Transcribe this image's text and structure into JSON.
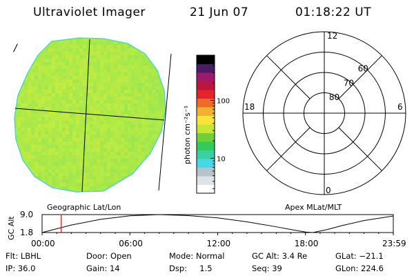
{
  "header": {
    "title": "Ultraviolet Imager",
    "date": "21 Jun 07",
    "time": "01:18:22 UT"
  },
  "globe": {
    "colors": [
      "#9ee84a",
      "#a8ea48",
      "#b4ec45",
      "#c2ee42",
      "#8fe352",
      "#c8e840",
      "#b0ea4a",
      "#9ce64e",
      "#d2ec3c"
    ],
    "edge_color": "#4fd8c0",
    "dark_side": "right-bottom"
  },
  "colorbar": {
    "ticks": [
      {
        "value": 100,
        "label": "100"
      },
      {
        "value": 10,
        "label": "10"
      }
    ],
    "range": [
      2.5,
      600
    ],
    "scale": "log",
    "unit_label": "photon cm⁻²s⁻¹",
    "colors": [
      "#ffffff",
      "#dfe3e8",
      "#b6c3cc",
      "#4bd6e6",
      "#3ad1a0",
      "#37c85a",
      "#6fd13a",
      "#c6e635",
      "#fae43c",
      "#f4b033",
      "#ef6b2a",
      "#e3252a",
      "#bd1340",
      "#9a1b6e",
      "#4a1c67",
      "#000000"
    ]
  },
  "polar": {
    "mlt_labels": [
      {
        "label": "12",
        "pos": "top"
      },
      {
        "label": "6",
        "pos": "right"
      },
      {
        "label": "0",
        "pos": "bottom"
      },
      {
        "label": "18",
        "pos": "left"
      }
    ],
    "lat_circles": [
      {
        "lat": 80,
        "label": "80"
      },
      {
        "lat": 70,
        "label": "70"
      },
      {
        "lat": 60,
        "label": "60"
      },
      {
        "lat": 50,
        "label": ""
      }
    ]
  },
  "labels": {
    "geo": "Geographic Lat/Lon",
    "apex": "Apex MLat/MLT",
    "pole_mark": "/"
  },
  "altitude_plot": {
    "ylabel": "GC Alt",
    "yticks": [
      {
        "value": 9.0,
        "label": "9.0"
      },
      {
        "value": 1.8,
        "label": "1.8"
      }
    ],
    "ylim": [
      1.8,
      9.0
    ],
    "xticks": [
      {
        "hour": 0,
        "label": "00:00"
      },
      {
        "hour": 6,
        "label": "06:00"
      },
      {
        "hour": 12,
        "label": "12:00"
      },
      {
        "hour": 18,
        "label": "18:00"
      },
      {
        "hour": 24,
        "label": "23:59"
      }
    ],
    "marker_hour": 1.3056,
    "marker_color": "#e8131b",
    "orbit": [
      {
        "hour": 0.0,
        "alt": 1.8
      },
      {
        "hour": 2.0,
        "alt": 4.8
      },
      {
        "hour": 4.0,
        "alt": 7.1
      },
      {
        "hour": 6.0,
        "alt": 8.5
      },
      {
        "hour": 8.0,
        "alt": 9.0
      },
      {
        "hour": 10.0,
        "alt": 8.6
      },
      {
        "hour": 12.0,
        "alt": 7.7
      },
      {
        "hour": 14.0,
        "alt": 6.1
      },
      {
        "hour": 16.0,
        "alt": 4.1
      },
      {
        "hour": 17.0,
        "alt": 3.0
      },
      {
        "hour": 18.0,
        "alt": 2.0
      },
      {
        "hour": 18.5,
        "alt": 1.8
      },
      {
        "hour": 19.5,
        "alt": 3.0
      },
      {
        "hour": 20.5,
        "alt": 4.6
      },
      {
        "hour": 22.0,
        "alt": 6.6
      },
      {
        "hour": 23.98,
        "alt": 8.4
      }
    ]
  },
  "info": {
    "flt": "Flt: LBHL",
    "ip": "IP: 36.0",
    "door": "Door: Open",
    "gain": "Gain: 14",
    "mode": "Mode: Normal",
    "dsp": "Dsp:     1.5",
    "gcalt": "GC Alt: 3.4 Re",
    "seq": "Seq: 39",
    "glat": "GLat: −21.1",
    "glon": "GLon: 224.6"
  }
}
